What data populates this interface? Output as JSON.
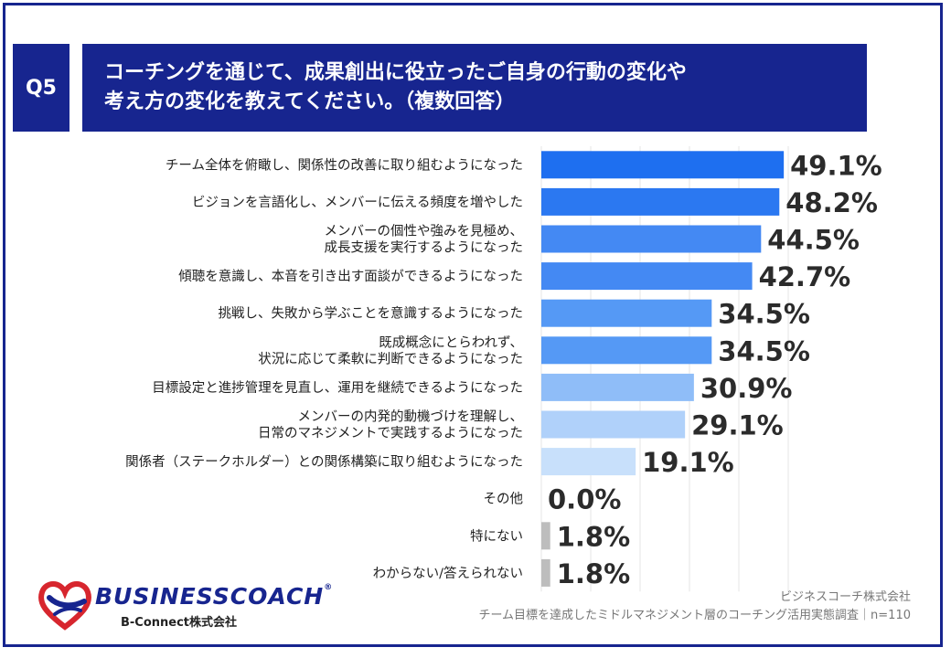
{
  "question": {
    "badge": "Q5",
    "title_line1": "コーチングを通じて、成果創出に役立ったご自身の行動の変化や",
    "title_line2": "考え方の変化を教えてください。（複数回答）"
  },
  "colors": {
    "frame": "#17258f",
    "header_bg": "#17258f",
    "bar_dark": "#1e6ff0",
    "bar_mid": "#5599f5",
    "bar_light": "#8fbdf8",
    "bar_pale": "#c2dcfb",
    "bar_gray": "#bdbdbd"
  },
  "chart_data": {
    "type": "bar",
    "orientation": "horizontal",
    "unit": "%",
    "xlim": [
      0,
      50
    ],
    "grid": true,
    "categories": [
      [
        "チーム全体を俯瞰し、関係性の改善に取り組むようになった"
      ],
      [
        "ビジョンを言語化し、メンバーに伝える頻度を増やした"
      ],
      [
        "メンバーの個性や強みを見極め、",
        "成長支援を実行するようになった"
      ],
      [
        "傾聴を意識し、本音を引き出す面談ができるようになった"
      ],
      [
        "挑戦し、失敗から学ぶことを意識するようになった"
      ],
      [
        "既成概念にとらわれず、",
        "状況に応じて柔軟に判断できるようになった"
      ],
      [
        "目標設定と進捗管理を見直し、運用を継続できるようになった"
      ],
      [
        "メンバーの内発的動機づけを理解し、",
        "日常のマネジメントで実践するようになった"
      ],
      [
        "関係者（ステークホルダー）との関係構築に取り組むようになった"
      ],
      [
        "その他"
      ],
      [
        "特にない"
      ],
      [
        "わからない/答えられない"
      ]
    ],
    "values": [
      49.1,
      48.2,
      44.5,
      42.7,
      34.5,
      34.5,
      30.9,
      29.1,
      19.1,
      0.0,
      1.8,
      1.8
    ],
    "value_labels": [
      "49.1%",
      "48.2%",
      "44.5%",
      "42.7%",
      "34.5%",
      "34.5%",
      "30.9%",
      "29.1%",
      "19.1%",
      "0.0%",
      "1.8%",
      "1.8%"
    ],
    "bar_colors": [
      "#1e6ff0",
      "#2b78f1",
      "#4489f3",
      "#4489f3",
      "#5599f5",
      "#5599f5",
      "#8fbdf8",
      "#b0d1fa",
      "#c8e0fb",
      "#bdbdbd",
      "#bdbdbd",
      "#bdbdbd"
    ]
  },
  "logo": {
    "wordmark": "BUSINESSCOACH",
    "registered": "®",
    "subtitle": "B-Connect株式会社"
  },
  "source": {
    "company": "ビジネスコーチ株式会社",
    "survey": "チーム目標を達成したミドルマネジメント層のコーチング活用実態調査｜n=110"
  }
}
